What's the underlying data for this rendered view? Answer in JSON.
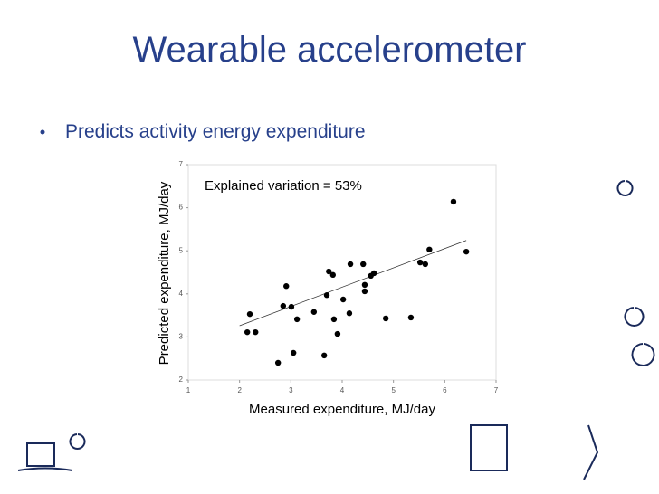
{
  "slide": {
    "title": "Wearable accelerometer",
    "bullet": "Predicts activity energy expenditure"
  },
  "chart_data": {
    "type": "scatter",
    "xlabel": "Measured expenditure, MJ/day",
    "ylabel": "Predicted expenditure, MJ/day",
    "annotation": "Explained variation = 53%",
    "x": [
      2.15,
      2.2,
      2.31,
      2.75,
      2.85,
      2.91,
      3.01,
      3.05,
      3.12,
      3.45,
      3.65,
      3.7,
      3.74,
      3.82,
      3.84,
      3.91,
      4.02,
      4.14,
      4.16,
      4.41,
      4.44,
      4.44,
      4.56,
      4.62,
      4.85,
      5.34,
      5.52,
      5.62,
      5.7,
      6.42,
      6.17
    ],
    "values": [
      3.11,
      3.53,
      3.11,
      2.4,
      3.72,
      4.18,
      3.7,
      2.63,
      3.41,
      3.58,
      2.57,
      3.97,
      4.52,
      4.44,
      3.41,
      3.07,
      3.87,
      3.55,
      4.69,
      4.69,
      4.06,
      4.21,
      4.42,
      4.48,
      3.43,
      3.45,
      4.73,
      4.69,
      5.03,
      4.98,
      6.14
    ],
    "color": "#000000",
    "trendline": {
      "x": [
        2.0,
        6.42
      ],
      "y": [
        3.26,
        5.24
      ]
    },
    "xlim": [
      1,
      7
    ],
    "ylim": [
      2,
      7
    ],
    "xticks": [
      1,
      2,
      3,
      4,
      5,
      6,
      7
    ],
    "yticks": [
      2,
      3,
      4,
      5,
      6,
      7
    ]
  }
}
